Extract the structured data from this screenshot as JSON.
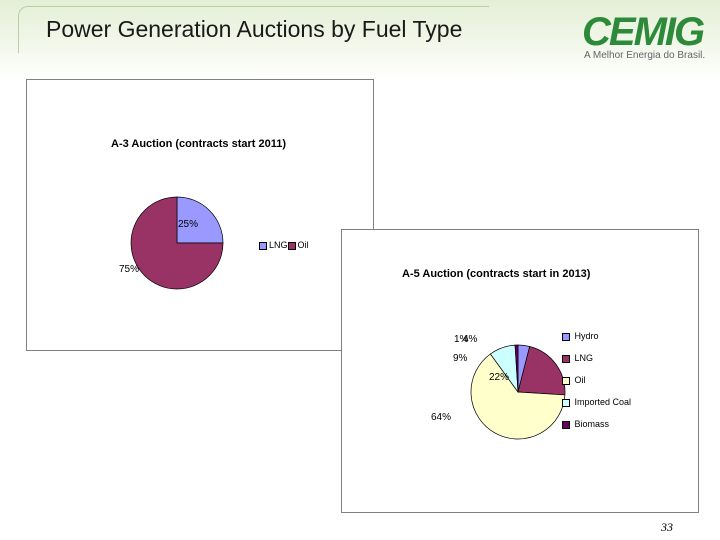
{
  "header": {
    "title": "Power Generation Auctions by Fuel Type",
    "logo_text": "CEMIG",
    "logo_tagline": "A Melhor Energia do Brasil."
  },
  "colors": {
    "header_band": "#e4efd6",
    "logo_green": "#2e8a3b",
    "hydro": "#9999ff",
    "lng": "#993366",
    "oil": "#ffffcc",
    "imported_coal": "#ccffff",
    "biomass": "#660066"
  },
  "chart_data": [
    {
      "type": "pie",
      "title": "A-3 Auction (contracts start 2011)",
      "categories": [
        "LNG",
        "Oil"
      ],
      "values": [
        25,
        75
      ],
      "data_labels": [
        "25%",
        "75%"
      ],
      "colors": [
        "#9999ff",
        "#993366"
      ],
      "legend_position": "right"
    },
    {
      "type": "pie",
      "title": "A-5 Auction (contracts start in 2013)",
      "categories": [
        "Hydro",
        "LNG",
        "Oil",
        "Imported Coal",
        "Biomass"
      ],
      "values": [
        4,
        22,
        64,
        9,
        1
      ],
      "data_labels": [
        "4%",
        "22%",
        "64%",
        "9%",
        "1%"
      ],
      "colors": [
        "#9999ff",
        "#993366",
        "#ffffcc",
        "#ccffff",
        "#660066"
      ],
      "legend_position": "right"
    }
  ],
  "footer": {
    "page_number": "33"
  }
}
